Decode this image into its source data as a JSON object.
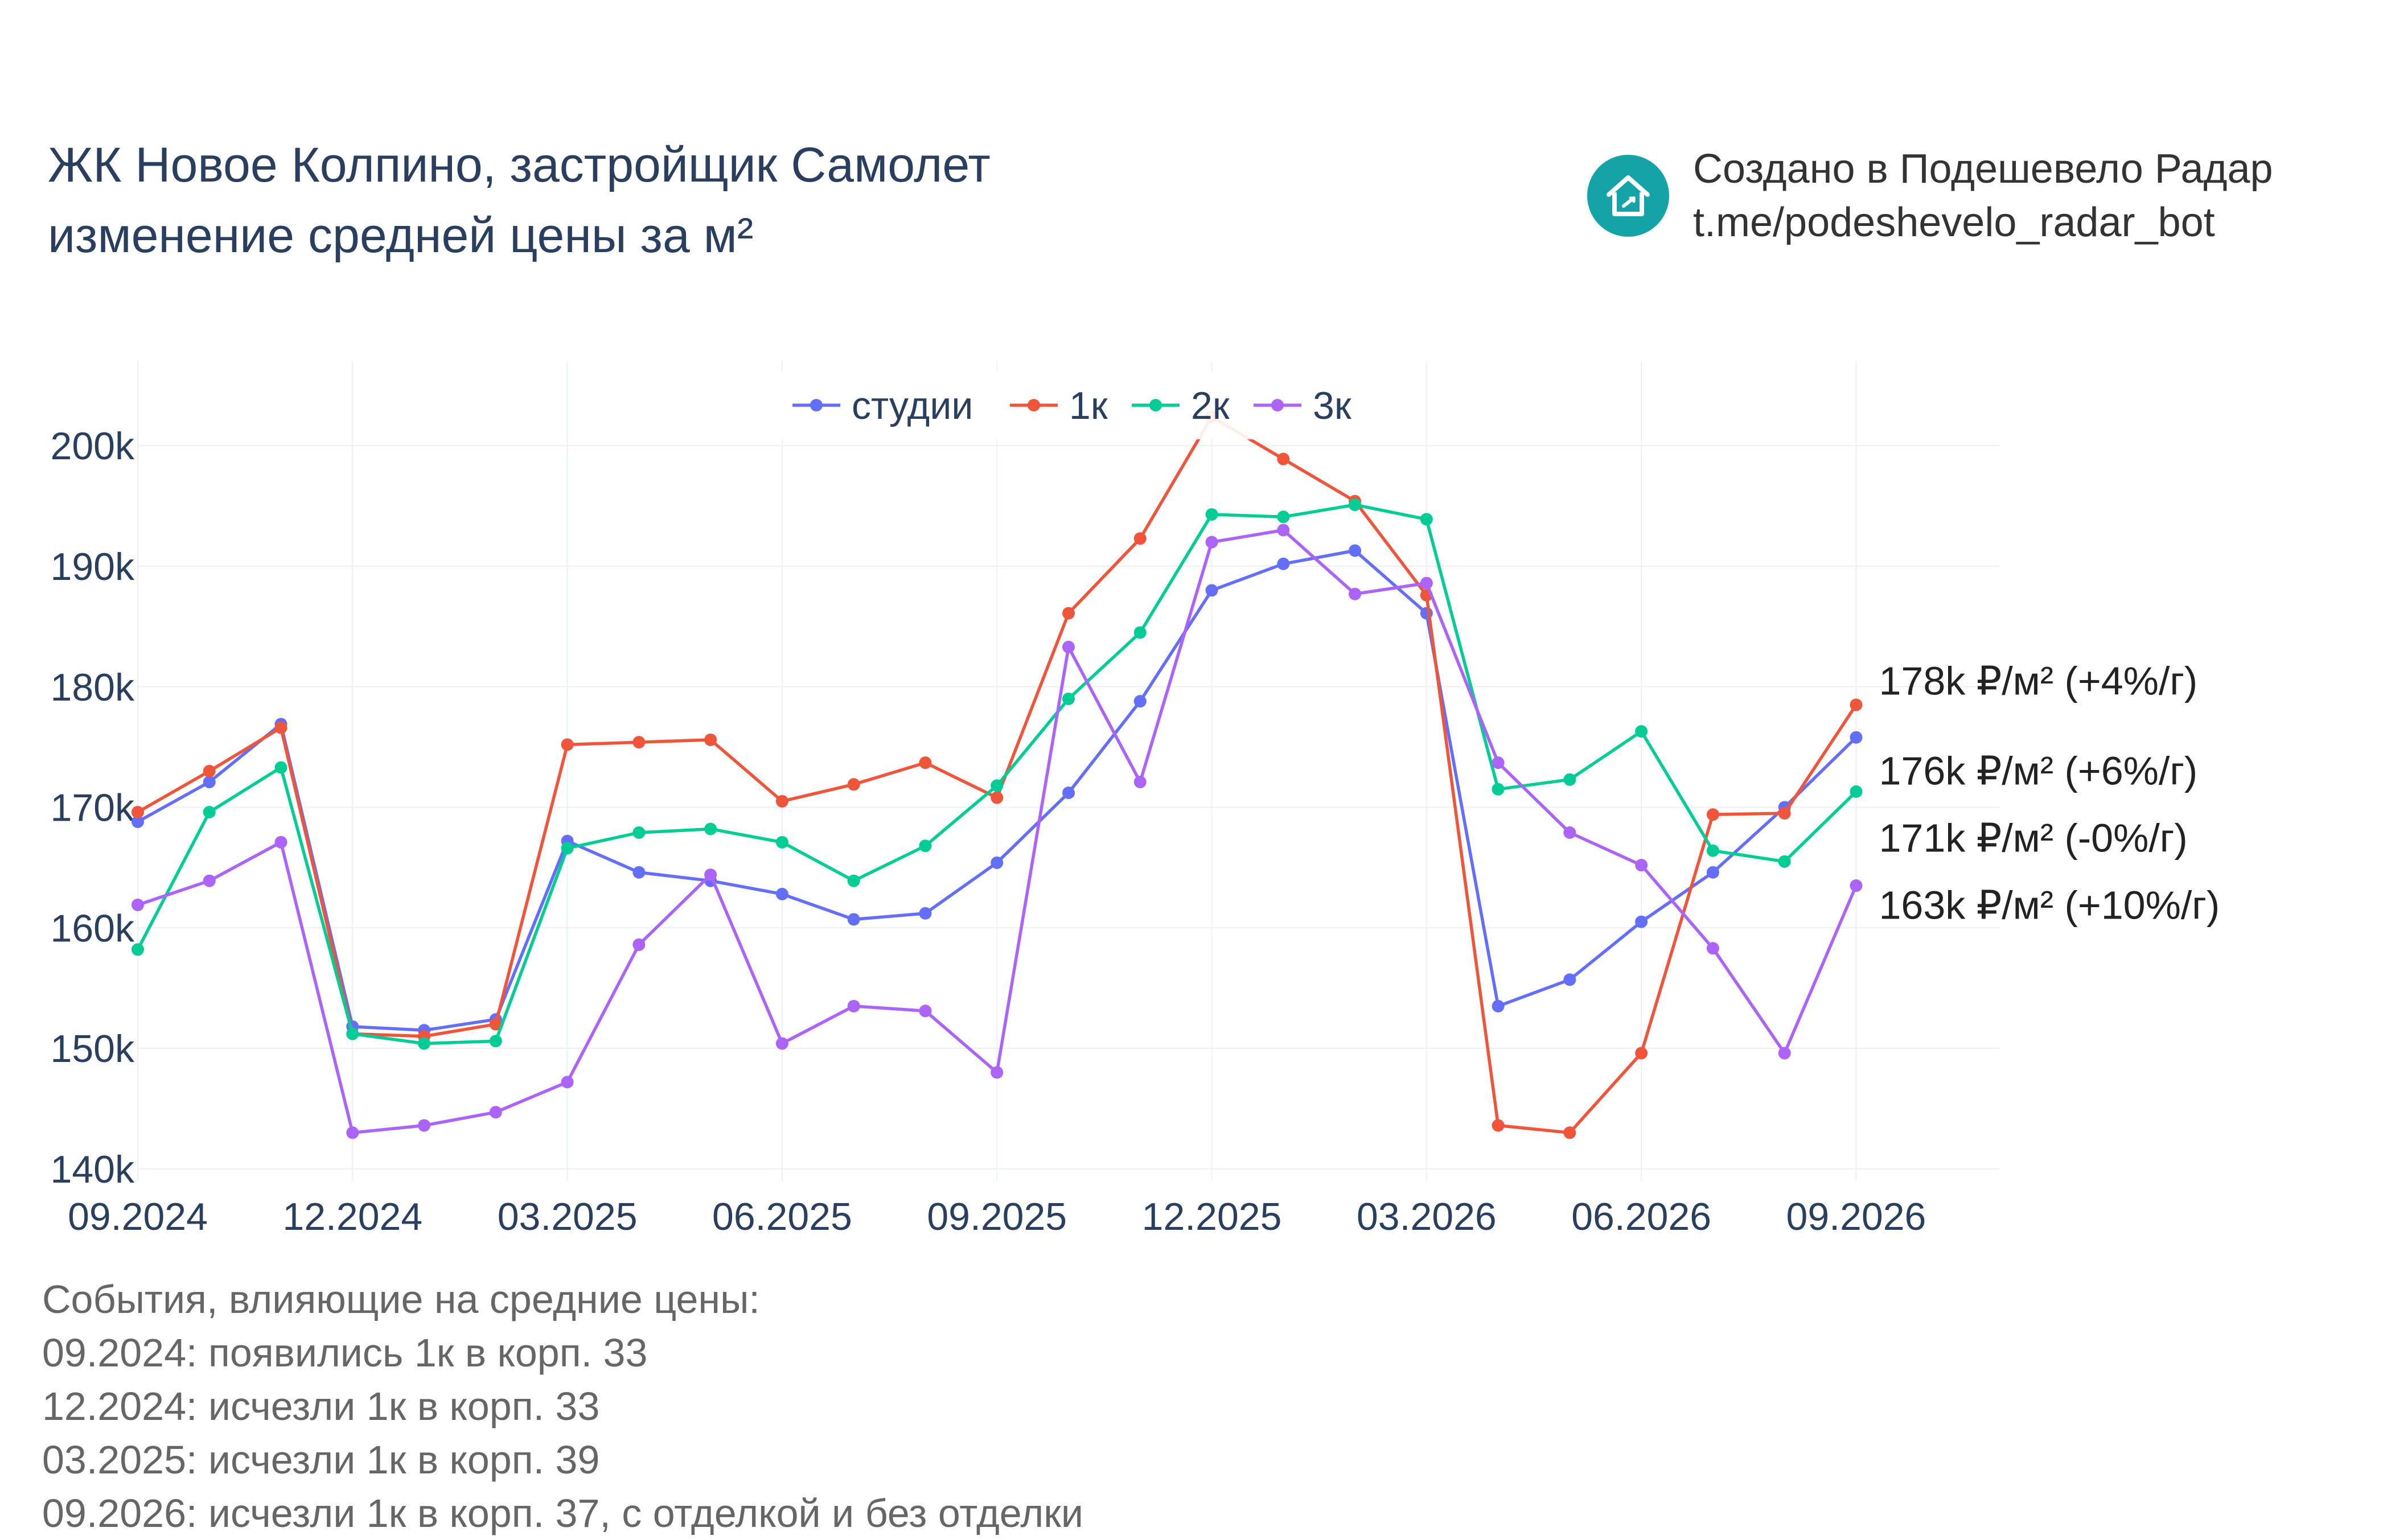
{
  "title": {
    "line1": "ЖК Новое Колпино, застройщик Самолет",
    "line2": "изменение средней цены за м²"
  },
  "branding": {
    "line1": "Создано в Подешевело Радар",
    "line2": "t.me/podeshevelo_radar_bot",
    "logo_icon": "house-discount-icon",
    "logo_color": "#14a3a6"
  },
  "events": {
    "heading": "События, влияющие на средние цены:",
    "items": [
      "09.2024: появились 1к в корп. 33",
      "12.2024: исчезли 1к в корп. 33",
      "03.2025: исчезли 1к в корп. 39",
      "09.2026: исчезли 1к в корп. 37, с отделкой и без отделки"
    ]
  },
  "chart_data": {
    "type": "line",
    "legend_position": "top-center",
    "grid": true,
    "x": [
      "2024-09",
      "2024-10",
      "2024-11",
      "2024-12",
      "2025-01",
      "2025-02",
      "2025-03",
      "2025-04",
      "2025-05",
      "2025-06",
      "2025-07",
      "2025-08",
      "2025-09",
      "2025-10",
      "2025-11",
      "2025-12",
      "2026-01",
      "2026-02",
      "2026-03",
      "2026-04",
      "2026-05",
      "2026-06",
      "2026-07",
      "2026-08",
      "2026-09"
    ],
    "x_ticks": [
      {
        "x": "2024-09",
        "label": "09.2024"
      },
      {
        "x": "2024-12",
        "label": "12.2024"
      },
      {
        "x": "2025-03",
        "label": "03.2025"
      },
      {
        "x": "2025-06",
        "label": "06.2025"
      },
      {
        "x": "2025-09",
        "label": "09.2025"
      },
      {
        "x": "2025-12",
        "label": "12.2025"
      },
      {
        "x": "2026-03",
        "label": "03.2026"
      },
      {
        "x": "2026-06",
        "label": "06.2026"
      },
      {
        "x": "2026-09",
        "label": "09.2026"
      }
    ],
    "x_range": [
      "2024-09",
      "2026-11"
    ],
    "ylim": [
      139000,
      207000
    ],
    "y_ticks": [
      {
        "value": 140000,
        "label": "140k"
      },
      {
        "value": 150000,
        "label": "150k"
      },
      {
        "value": 160000,
        "label": "160k"
      },
      {
        "value": 170000,
        "label": "170k"
      },
      {
        "value": 180000,
        "label": "180k"
      },
      {
        "value": 190000,
        "label": "190k"
      },
      {
        "value": 200000,
        "label": "200k"
      }
    ],
    "series": [
      {
        "name": "студии",
        "color": "#636efa",
        "values": [
          168800,
          172100,
          176900,
          151800,
          151500,
          152400,
          167200,
          164600,
          163900,
          162800,
          160700,
          161200,
          165400,
          171200,
          178800,
          188000,
          190200,
          191300,
          186100,
          153500,
          155700,
          160500,
          164600,
          170000,
          175800
        ],
        "end_label": "176k ₽/м² (+6%/г)"
      },
      {
        "name": "1к",
        "color": "#ef553b",
        "values": [
          169600,
          173000,
          176600,
          151200,
          151000,
          152000,
          175200,
          175400,
          175600,
          170500,
          171900,
          173700,
          170800,
          186100,
          192300,
          202400,
          198900,
          195400,
          187600,
          143600,
          143000,
          149600,
          169400,
          169500,
          178500
        ],
        "end_label": "178k ₽/м² (+4%/г)"
      },
      {
        "name": "2к",
        "color": "#00cc96",
        "values": [
          158200,
          169600,
          173300,
          151200,
          150400,
          150600,
          166600,
          167900,
          168200,
          167100,
          163900,
          166800,
          171800,
          179000,
          184500,
          194300,
          194100,
          195100,
          193900,
          171500,
          172300,
          176300,
          166400,
          165500,
          171300
        ],
        "end_label": "171k ₽/м² (-0%/г)"
      },
      {
        "name": "3к",
        "color": "#ab63fa",
        "values": [
          161900,
          163900,
          167100,
          143000,
          143600,
          144700,
          147200,
          158600,
          164400,
          150400,
          153500,
          153100,
          148000,
          183300,
          172100,
          192000,
          193000,
          187700,
          188600,
          173700,
          167900,
          165200,
          158300,
          149600,
          163500
        ],
        "end_label": "163k ₽/м² (+10%/г)"
      }
    ]
  }
}
